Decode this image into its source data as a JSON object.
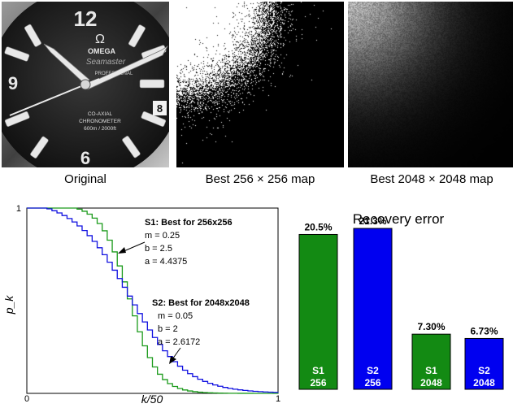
{
  "images": {
    "watch": {
      "brand": "OMEGA",
      "model": "Seamaster",
      "sub": "PROFESSIONAL",
      "line1": "CO-AXIAL",
      "line2": "CHRONOMETER",
      "line3": "600m / 2000ft",
      "n12": "12",
      "n9": "9",
      "n6": "6",
      "date": "8",
      "omega_symbol": "Ω"
    },
    "captions": [
      "Original",
      "Best 256 × 256 map",
      "Best 2048 × 2048 map"
    ]
  },
  "chart_data": [
    {
      "type": "line",
      "xlabel": "k/50",
      "ylabel": "p_k",
      "xlim": [
        0,
        1
      ],
      "ylim": [
        0,
        1
      ],
      "xticks": [
        "0",
        "1"
      ],
      "yticks": [
        "1"
      ],
      "series": [
        {
          "name": "S1: Best for 256x256",
          "color": "#1a9a1a",
          "m": 0.25,
          "b": 2.5,
          "a": 4.4375
        },
        {
          "name": "S2: Best for 2048x2048",
          "color": "#1010e0",
          "m": 0.05,
          "b": 2,
          "a": 2.6172
        }
      ],
      "annotations": [
        {
          "title": "S1: Best for 256x256",
          "lines": [
            "m = 0.25",
            "b = 2.5",
            "a = 4.4375"
          ]
        },
        {
          "title": "S2: Best for 2048x2048",
          "lines": [
            "m = 0.05",
            "b = 2",
            "a = 2.6172"
          ]
        }
      ]
    },
    {
      "type": "bar",
      "title": "Recovery error",
      "categories": [
        "S1 256",
        "S2 256",
        "S1 2048",
        "S2 2048"
      ],
      "labels_top": [
        "S1",
        "S2",
        "S1",
        "S2"
      ],
      "labels_bottom": [
        "256",
        "256",
        "2048",
        "2048"
      ],
      "values": [
        20.5,
        21.3,
        7.3,
        6.73
      ],
      "value_labels": [
        "20.5%",
        "21.3%",
        "7.30%",
        "6.73%"
      ],
      "colors": [
        "#138a13",
        "#0000f0",
        "#138a13",
        "#0000f0"
      ],
      "ylim": [
        0,
        26
      ]
    }
  ]
}
